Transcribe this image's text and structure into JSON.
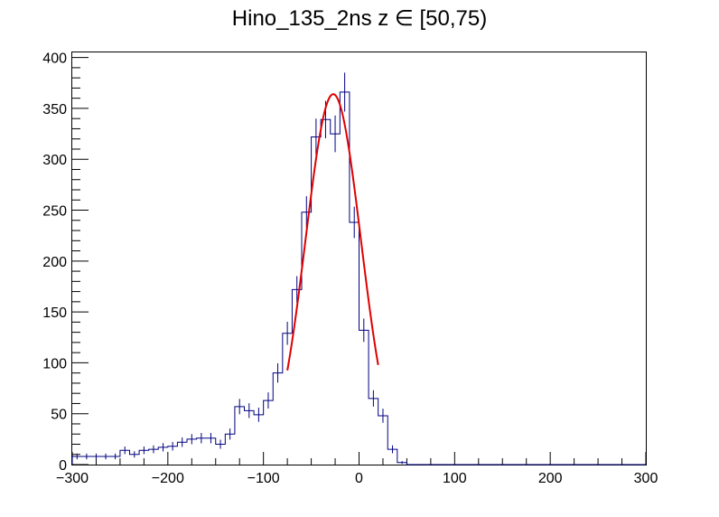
{
  "chart_data": {
    "type": "histogram",
    "title": "Hino_135_2ns z  ∈ [50,75)",
    "xlabel": "",
    "ylabel": "",
    "xlim": [
      -300,
      300
    ],
    "ylim": [
      0,
      405
    ],
    "xticks": [
      -300,
      -200,
      -100,
      0,
      100,
      200,
      300
    ],
    "yticks": [
      0,
      50,
      100,
      150,
      200,
      250,
      300,
      350,
      400
    ],
    "bin_width": 10,
    "bin_start": -300,
    "values": [
      8,
      8,
      8,
      8,
      8,
      14,
      10,
      14,
      15,
      17,
      18,
      22,
      25,
      26,
      26,
      20,
      30,
      57,
      53,
      49,
      63,
      90,
      129,
      172,
      248,
      322,
      339,
      325,
      366,
      238,
      132,
      65,
      48,
      15,
      2,
      0,
      0,
      0,
      0,
      0,
      0,
      0,
      0,
      0,
      0,
      0,
      0,
      0,
      0,
      0,
      0,
      0,
      0,
      0,
      0,
      0,
      0,
      0,
      0,
      0
    ],
    "fit": {
      "type": "gaussian",
      "amplitude": 364,
      "mean": -27,
      "sigma": 29,
      "x_range": [
        -75,
        20
      ]
    },
    "colors": {
      "histogram": "#000080",
      "fit": "#e00000",
      "axis": "#000000"
    },
    "grid": false,
    "legend": "none"
  }
}
